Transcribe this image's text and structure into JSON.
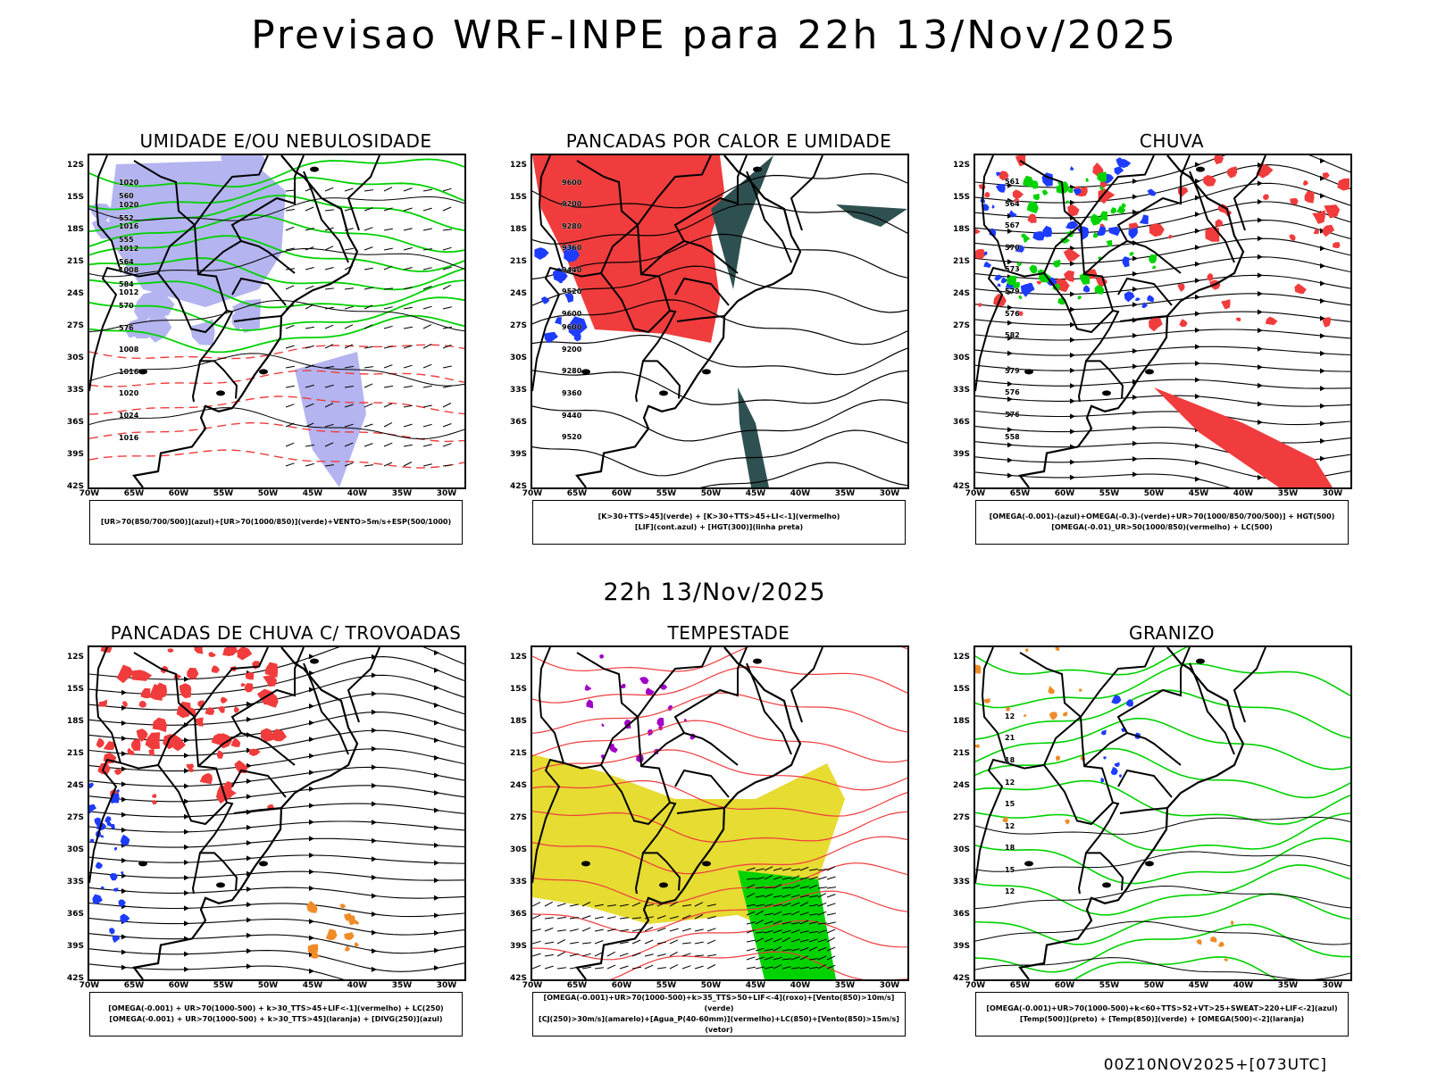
{
  "title": "Previsao WRF-INPE  para 22h 13/Nov/2025",
  "mid_title": "22h 13/Nov/2025",
  "footer": "00Z10NOV2025+[073UTC]",
  "lat_labels": [
    "12S",
    "15S",
    "18S",
    "21S",
    "24S",
    "27S",
    "30S",
    "33S",
    "36S",
    "39S",
    "42S"
  ],
  "lon_labels": [
    "70W",
    "65W",
    "60W",
    "55W",
    "50W",
    "45W",
    "40W",
    "35W",
    "30W"
  ],
  "panels": [
    {
      "title": "UMIDADE E/OU NEBULOSIDADE",
      "legend": [
        "[UR>70(850/700/500)](azul)+[UR>70(1000/850)](verde)+VENTO>5m/s+ESP(500/1000)"
      ],
      "labels": [
        "1012",
        "1008",
        "1012",
        "1016",
        "1020",
        "1020",
        "1016",
        "1024",
        "1020",
        "1016",
        "1008",
        "576",
        "570",
        "584",
        "564",
        "555",
        "552",
        "560"
      ]
    },
    {
      "title": "PANCADAS POR CALOR E UMIDADE",
      "legend": [
        "[K>30+TTS>45](verde) + [K>30+TTS>45+LI<-1](vermelho)",
        "[LIF](cont.azul) + [HGT(300)](linha preta)"
      ],
      "labels": [
        "9600",
        "9520",
        "9440",
        "9360",
        "9280",
        "9200",
        "9600",
        "9520",
        "9440",
        "9360",
        "9280",
        "9200",
        "9600"
      ]
    },
    {
      "title": "CHUVA",
      "legend": [
        "[OMEGA(-0.001)-(azul)+OMEGA(-0.3)-(verde)+UR>70(1000/850/700/500)] + HGT(500)",
        "[OMEGA(-0.01)_UR>50(1000/850)(vermelho) + LC(500)"
      ],
      "labels": [
        "582",
        "576",
        "579",
        "573",
        "570",
        "567",
        "564",
        "561",
        "558",
        "576",
        "576",
        "579"
      ]
    },
    {
      "title": "PANCADAS DE CHUVA C/ TROVOADAS",
      "legend": [
        "[OMEGA(-0.001) + UR>70(1000-500) + k>30_TTS>45+LIF<-1](vermelho) + LC(250)",
        "[OMEGA(-0.001) + UR>70(1000-500) + k>30_TTS>45](laranja) + [DIVG(250)](azul)"
      ],
      "labels": []
    },
    {
      "title": "TEMPESTADE",
      "legend": [
        "[OMEGA(-0.001)+UR>70(1000-500)+k>35_TTS>50+LIF<-4](roxo)+[Vento(850)>10m/s](verde)",
        "[CJ(250)>30m/s](amarelo)+[Agua_P(40-60mm)](vermelho)+LC(850)+[Vento(850)>15m/s](vetor)"
      ],
      "labels": []
    },
    {
      "title": "GRANIZO",
      "legend": [
        "[OMEGA(-0.001)+UR>70(1000-500)+k<60+TTS>52+VT>25+SWEAT>220+LIF<-2](azul)",
        "[Temp(500)](preto) + [Temp(850)](verde) + [OMEGA(500)<-2](laranja)"
      ],
      "labels": [
        "12",
        "15",
        "18",
        "12",
        "15",
        "12",
        "18",
        "21",
        "12"
      ]
    }
  ],
  "colors": {
    "red": "#f03c3c",
    "green": "#00d200",
    "blue": "#1e3cff",
    "lavender": "#b4b4f0",
    "dark_teal": "#2f5050",
    "yellow": "#e6dc32",
    "orange": "#f08c28",
    "purple": "#a000c8",
    "bright_red": "#f03c3c"
  }
}
